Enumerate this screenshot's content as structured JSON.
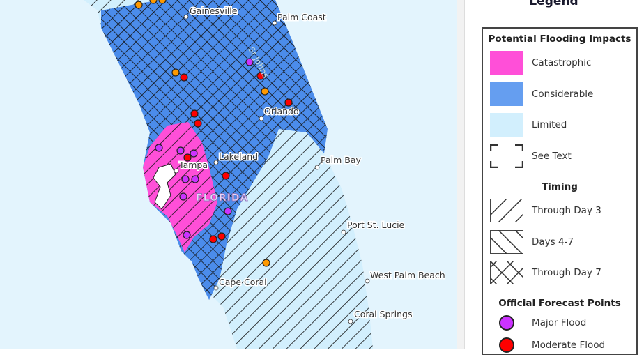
{
  "legend": {
    "title": "Legend",
    "impacts_header": "Potential Flooding Impacts",
    "impacts": [
      {
        "label": "Catastrophic",
        "color": "#ff4fd8"
      },
      {
        "label": "Considerable",
        "color": "#659ef0"
      },
      {
        "label": "Limited",
        "color": "#d2effd"
      },
      {
        "label": "See Text",
        "icon": "dashed-corner-brackets"
      }
    ],
    "timing_header": "Timing",
    "timing": [
      {
        "label": "Through Day 3",
        "pattern": "forward-diagonal"
      },
      {
        "label": "Days 4-7",
        "pattern": "back-diagonal"
      },
      {
        "label": "Through Day 7",
        "pattern": "crosshatch"
      }
    ],
    "points_header": "Official Forecast Points",
    "points": [
      {
        "label": "Major Flood",
        "color": "#cc33ff"
      },
      {
        "label": "Moderate Flood",
        "color": "#ff0000"
      }
    ]
  },
  "map": {
    "cities": [
      "Gainesville",
      "Palm Coast",
      "Orlando",
      "Lakeland",
      "Tampa",
      "Palm Bay",
      "Port St. Lucie",
      "West Palm Beach",
      "Cape Coral",
      "Coral Springs"
    ],
    "river_label": "St Johns",
    "state_label": "FLORIDA",
    "colors": {
      "water": "#e3f4fd",
      "minor": "#ff9900"
    }
  }
}
